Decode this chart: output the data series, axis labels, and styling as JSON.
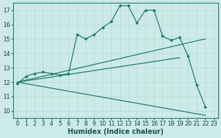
{
  "xlabel": "Humidex (Indice chaleur)",
  "bg_color": "#cceae7",
  "line_color": "#1a7a6e",
  "grid_color": "#b8d8d5",
  "xlim": [
    -0.5,
    23.5
  ],
  "ylim": [
    9.5,
    17.5
  ],
  "yticks": [
    10,
    11,
    12,
    13,
    14,
    15,
    16,
    17
  ],
  "xticks": [
    0,
    1,
    2,
    3,
    4,
    5,
    6,
    7,
    8,
    9,
    10,
    11,
    12,
    13,
    14,
    15,
    16,
    17,
    18,
    19,
    20,
    21,
    22,
    23
  ],
  "lines": [
    {
      "x": [
        0,
        1,
        2,
        3,
        4,
        5,
        6,
        7,
        8,
        9,
        10,
        11,
        12,
        13,
        14,
        15,
        16,
        17,
        18,
        19,
        20,
        21,
        22
      ],
      "y": [
        11.9,
        12.4,
        12.6,
        12.7,
        12.6,
        12.5,
        12.6,
        15.3,
        15.0,
        15.3,
        15.8,
        16.2,
        17.3,
        17.3,
        16.1,
        17.0,
        17.0,
        15.2,
        14.9,
        15.1,
        13.8,
        11.8,
        10.3
      ],
      "markers": true
    },
    {
      "x": [
        0,
        22
      ],
      "y": [
        12.0,
        15.0
      ],
      "markers": false
    },
    {
      "x": [
        0,
        19
      ],
      "y": [
        12.0,
        13.7
      ],
      "markers": false
    },
    {
      "x": [
        0,
        22
      ],
      "y": [
        12.0,
        9.7
      ],
      "markers": false
    }
  ],
  "label_fontsize": 7,
  "tick_fontsize": 6
}
